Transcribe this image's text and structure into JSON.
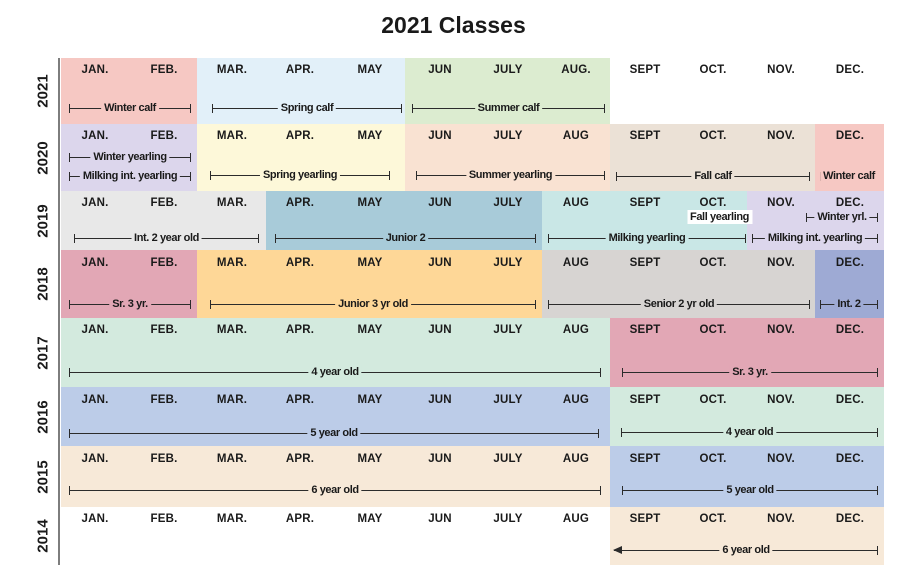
{
  "title": "2021 Classes",
  "years": [
    "2021",
    "2020",
    "2019",
    "2018",
    "2017",
    "2016",
    "2015",
    "2014"
  ],
  "months": {
    "2021": [
      "JAN.",
      "FEB.",
      "MAR.",
      "APR.",
      "MAY",
      "JUN",
      "JULY",
      "AUG.",
      "SEPT",
      "OCT.",
      "NOV.",
      "DEC."
    ],
    "2020": [
      "JAN.",
      "FEB.",
      "MAR.",
      "APR.",
      "MAY",
      "JUN",
      "JULY",
      "AUG",
      "SEPT",
      "OCT.",
      "NOV.",
      "DEC."
    ],
    "2019": [
      "JAN.",
      "FEB.",
      "MAR.",
      "APR.",
      "MAY",
      "JUN",
      "JULY",
      "AUG",
      "SEPT",
      "OCT.",
      "NOV.",
      "DEC."
    ],
    "2018": [
      "JAN.",
      "FEB.",
      "MAR.",
      "APR.",
      "MAY",
      "JUN",
      "JULY",
      "AUG",
      "SEPT",
      "OCT.",
      "NOV.",
      "DEC."
    ],
    "2017": [
      "JAN.",
      "FEB.",
      "MAR.",
      "APR.",
      "MAY",
      "JUN",
      "JULY",
      "AUG",
      "SEPT",
      "OCT.",
      "NOV.",
      "DEC."
    ],
    "2016": [
      "JAN.",
      "FEB.",
      "MAR.",
      "APR.",
      "MAY",
      "JUN",
      "JULY",
      "AUG",
      "SEPT",
      "OCT.",
      "NOV.",
      "DEC."
    ],
    "2015": [
      "JAN.",
      "FEB.",
      "MAR.",
      "APR.",
      "MAY",
      "JUN",
      "JULY",
      "AUG",
      "SEPT",
      "OCT.",
      "NOV.",
      "DEC."
    ],
    "2014": [
      "JAN.",
      "FEB.",
      "MAR.",
      "APR.",
      "MAY",
      "JUN",
      "JULY",
      "AUG",
      "SEPT",
      "OCT.",
      "NOV.",
      "DEC."
    ]
  },
  "bands": [
    {
      "year": "2021",
      "start": "JAN",
      "end": "FEB",
      "color": "#f6c8c3"
    },
    {
      "year": "2021",
      "start": "MAR",
      "end": "MAY",
      "color": "#e2f0f9"
    },
    {
      "year": "2021",
      "start": "JUN",
      "end": "AUG",
      "color": "#dcecd0"
    },
    {
      "year": "2020",
      "start": "JAN",
      "end": "FEB",
      "color": "#dcd6ec"
    },
    {
      "year": "2020",
      "start": "MAR",
      "end": "MAY",
      "color": "#fdf8d9"
    },
    {
      "year": "2020",
      "start": "JUN",
      "end": "AUG",
      "color": "#f9e2d2"
    },
    {
      "year": "2020",
      "start": "SEPT",
      "end": "NOV",
      "color": "#ebe1d6"
    },
    {
      "year": "2020",
      "start": "DEC",
      "end": "DEC",
      "color": "#f6c8c3"
    },
    {
      "year": "2019",
      "start": "JAN",
      "end": "MAR",
      "color": "#e8e8e8"
    },
    {
      "year": "2019",
      "start": "APR",
      "end": "JULY",
      "color": "#a8cbd9"
    },
    {
      "year": "2019",
      "start": "AUG",
      "end": "OCT",
      "color": "#c9e7e6"
    },
    {
      "year": "2019",
      "start": "NOV",
      "end": "DEC",
      "color": "#dcd6ec"
    },
    {
      "year": "2018",
      "start": "JAN",
      "end": "FEB",
      "color": "#e2a7b5"
    },
    {
      "year": "2018",
      "start": "MAR",
      "end": "JULY",
      "color": "#fed797"
    },
    {
      "year": "2018",
      "start": "AUG",
      "end": "NOV",
      "color": "#d7d4d2"
    },
    {
      "year": "2018",
      "start": "DEC",
      "end": "DEC",
      "color": "#9eaad4"
    },
    {
      "year": "2017",
      "start": "JAN",
      "end": "AUG",
      "color": "#d3eade"
    },
    {
      "year": "2017",
      "start": "SEPT",
      "end": "DEC",
      "color": "#e2a7b5"
    },
    {
      "year": "2016",
      "start": "JAN",
      "end": "AUG",
      "color": "#bccce8"
    },
    {
      "year": "2016",
      "start": "SEPT",
      "end": "DEC",
      "color": "#d3eade"
    },
    {
      "year": "2015",
      "start": "JAN",
      "end": "AUG",
      "color": "#f7e9d8"
    },
    {
      "year": "2015",
      "start": "SEPT",
      "end": "DEC",
      "color": "#bccce8"
    },
    {
      "year": "2014",
      "start": "SEPT",
      "end": "DEC",
      "color": "#f7e9d8"
    }
  ],
  "classes": [
    {
      "label": "Winter calf",
      "year": "2021",
      "start": "JAN",
      "end": "FEB"
    },
    {
      "label": "Spring calf",
      "year": "2021",
      "start": "MAR",
      "end": "MAY"
    },
    {
      "label": "Summer calf",
      "year": "2021",
      "start": "JUN",
      "end": "AUG"
    },
    {
      "label": "Winter yearling",
      "year": "2020",
      "start": "JAN",
      "end": "FEB"
    },
    {
      "label": "Milking int. yearling",
      "year": "2020",
      "start": "JAN",
      "end": "FEB"
    },
    {
      "label": "Spring yearling",
      "year": "2020",
      "start": "MAR",
      "end": "MAY"
    },
    {
      "label": "Summer yearling",
      "year": "2020",
      "start": "JUN",
      "end": "AUG"
    },
    {
      "label": "Fall calf",
      "year": "2020",
      "start": "SEPT",
      "end": "NOV"
    },
    {
      "label": "Winter calf",
      "year": "2020",
      "start": "DEC",
      "end": "DEC"
    },
    {
      "label": "Int. 2 year  old",
      "year": "2019",
      "start": "JAN",
      "end": "MAR"
    },
    {
      "label": "Junior 2",
      "year": "2019",
      "start": "APR",
      "end": "JULY"
    },
    {
      "label": "Fall yearling",
      "year": "2019",
      "start": "OCT",
      "end": "NOV"
    },
    {
      "label": "Winter yrl.",
      "year": "2019",
      "start": "DEC",
      "end": "DEC"
    },
    {
      "label": "Milking yearling",
      "year": "2019",
      "start": "AUG",
      "end": "OCT"
    },
    {
      "label": "Milking int. yearling",
      "year": "2019",
      "start": "NOV",
      "end": "DEC"
    },
    {
      "label": "Sr. 3 yr.",
      "year": "2018",
      "start": "JAN",
      "end": "FEB"
    },
    {
      "label": "Junior 3 yr old",
      "year": "2018",
      "start": "MAR",
      "end": "JULY"
    },
    {
      "label": "Senior 2 yr old",
      "year": "2018",
      "start": "AUG",
      "end": "NOV"
    },
    {
      "label": "Int. 2",
      "year": "2018",
      "start": "DEC",
      "end": "DEC"
    },
    {
      "label": "4 year old",
      "year": "2017",
      "start": "JAN",
      "end": "AUG"
    },
    {
      "label": "Sr. 3 yr.",
      "year": "2017",
      "start": "SEPT",
      "end": "DEC"
    },
    {
      "label": "5 year old",
      "year": "2016",
      "start": "JAN",
      "end": "AUG"
    },
    {
      "label": "4 year old",
      "year": "2016",
      "start": "SEPT",
      "end": "DEC"
    },
    {
      "label": "6 year old",
      "year": "2015",
      "start": "JAN",
      "end": "AUG"
    },
    {
      "label": "5 year old",
      "year": "2015",
      "start": "SEPT",
      "end": "DEC"
    },
    {
      "label": "6 year old",
      "year": "2014",
      "start": "SEPT",
      "end": "DEC"
    }
  ]
}
